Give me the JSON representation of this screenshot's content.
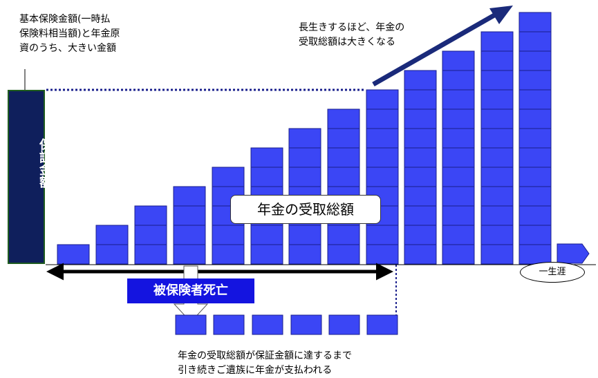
{
  "notes": {
    "guarantee": "基本保険金額(一時払\n保険料相当額)と年金原\n資のうち、大きい金額",
    "longevity": "長生きするほど、年金の\n受取総額は大きくなる",
    "bottom": "年金の受取総額が保証金額に達するまで\n引き続きご遺族に年金が支払われる"
  },
  "labels": {
    "guarantee_amount": "保証金額",
    "total_received": "年金の受取総額",
    "insured_death": "被保険者死亡",
    "lifetime": "一生涯"
  },
  "colors": {
    "bar_fill": "#3b46f5",
    "bar_stroke": "#1a1f8c",
    "guarantee_fill": "#0f1f5c",
    "death_fill": "#1414e0",
    "arrow": "#1a2a7a"
  }
}
